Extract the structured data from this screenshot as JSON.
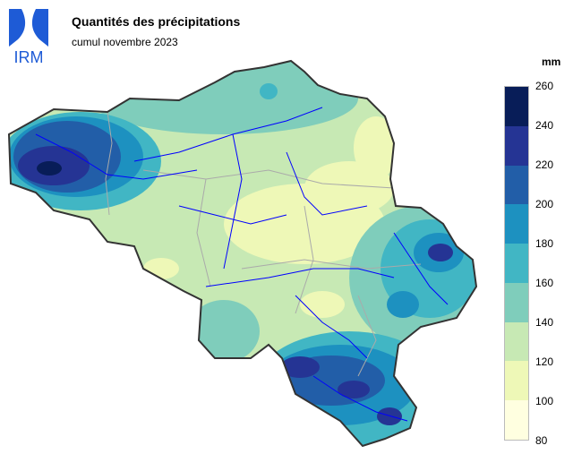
{
  "logo": {
    "text": "IRM"
  },
  "title": "Quantités des précipitations",
  "subtitle": "cumul novembre 2023",
  "legend": {
    "unit": "mm",
    "ticks": [
      "260",
      "240",
      "220",
      "200",
      "180",
      "160",
      "140",
      "120",
      "100",
      "80"
    ],
    "colors": [
      "#ffffe0",
      "#eef8b7",
      "#c7e9b4",
      "#7fcdbb",
      "#41b6c4",
      "#1d91c0",
      "#225ea8",
      "#253494",
      "#081d58"
    ]
  },
  "map": {
    "region": "Belgique",
    "rivers_color": "#0000ff",
    "borders_color": "#aaaaaa",
    "outline_color": "#333333"
  }
}
